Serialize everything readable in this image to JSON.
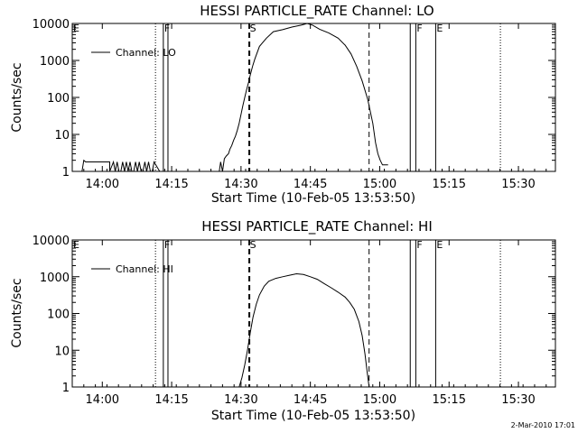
{
  "footer": {
    "timestamp": "2-Mar-2010 17:01"
  },
  "chart_data": [
    {
      "type": "line",
      "title": "HESSI PARTICLE_RATE Channel: LO",
      "xlabel": "Start Time (10-Feb-05 13:53:50)",
      "ylabel": "Counts/sec",
      "yscale": "log",
      "ylim": [
        1,
        10000
      ],
      "yticks": [
        {
          "value": 1,
          "label": "1"
        },
        {
          "value": 10,
          "label": "10"
        },
        {
          "value": 100,
          "label": "100"
        },
        {
          "value": 1000,
          "label": "1000"
        },
        {
          "value": 10000,
          "label": "10000"
        }
      ],
      "xlim_minutes_after_1400": [
        -6.5,
        37
      ],
      "xticks": [
        {
          "value": 0,
          "label": "14:00"
        },
        {
          "value": 15,
          "label": "14:15"
        },
        {
          "value": 30,
          "label": "14:30"
        },
        {
          "value": 45,
          "label": "14:45"
        },
        {
          "value": 60,
          "label": "15:00"
        },
        {
          "value": 75,
          "label": "15:15"
        },
        {
          "value": 90,
          "label": "15:30"
        }
      ],
      "legend": {
        "placement": "top-left",
        "entries": [
          "Channel: LO"
        ]
      },
      "markers": [
        {
          "label": "E",
          "x": -6.5,
          "style": "solid"
        },
        {
          "label": "",
          "x": 11.5,
          "style": "dotted"
        },
        {
          "label": "F",
          "x": 13.2,
          "style": "solid"
        },
        {
          "label": "",
          "x": 14.2,
          "style": "solid"
        },
        {
          "label": "S",
          "x": 31.7,
          "style": "dashed"
        },
        {
          "label": "",
          "x": 31.9,
          "style": "dashed"
        },
        {
          "label": "",
          "x": 57.7,
          "style": "dashed"
        },
        {
          "label": "",
          "x": 66.6,
          "style": "solid"
        },
        {
          "label": "F",
          "x": 67.8,
          "style": "solid"
        },
        {
          "label": "E",
          "x": 72.1,
          "style": "solid"
        },
        {
          "label": "",
          "x": 86.1,
          "style": "dotted"
        }
      ],
      "series": [
        {
          "x": [
            -6.5,
            -4.4,
            -4,
            -3.6,
            1.6,
            1.6,
            2.4,
            2.8,
            3.2,
            3.6,
            4,
            4.4,
            4.8,
            5.2,
            5.6,
            6,
            6.4,
            6.8,
            7.2,
            7.6,
            8,
            8.4,
            8.8,
            9.2,
            9.6,
            10,
            10.4,
            10.8,
            11.2,
            12.4,
            12.8,
            25.3,
            25.6,
            26,
            26.4,
            26.8,
            27.3,
            27.6,
            28,
            28.4,
            28.8,
            29.2,
            29.6,
            30,
            30.4,
            30.8,
            31.2,
            31.6,
            32,
            32.5,
            33,
            34,
            35.5,
            37,
            39,
            41,
            43,
            44.3,
            45.5,
            47,
            49,
            51,
            52.5,
            53.8,
            55,
            56.2,
            57.4,
            58.5,
            59.1,
            59.6,
            60.1,
            60.6,
            60.9,
            61.8
          ],
          "y": [
            1,
            1,
            2,
            1.8,
            1.8,
            1,
            1.8,
            1,
            1.8,
            1,
            1,
            1.8,
            1,
            1.8,
            1,
            1.8,
            1,
            1,
            1.8,
            1,
            1.8,
            1,
            1,
            1.8,
            1,
            1.8,
            1,
            1,
            1.8,
            1,
            1,
            1,
            1.8,
            1,
            2.2,
            2.6,
            3,
            4,
            5,
            7,
            9,
            13,
            20,
            35,
            60,
            100,
            160,
            250,
            400,
            700,
            1100,
            2400,
            4000,
            6000,
            6800,
            8000,
            9000,
            10000,
            9000,
            7000,
            5500,
            4000,
            2600,
            1500,
            700,
            280,
            90,
            20,
            6,
            3,
            2,
            1.5,
            1.5,
            1.5
          ]
        }
      ]
    },
    {
      "type": "line",
      "title": "HESSI PARTICLE_RATE Channel: HI",
      "xlabel": "Start Time (10-Feb-05 13:53:50)",
      "ylabel": "Counts/sec",
      "yscale": "log",
      "ylim": [
        1,
        10000
      ],
      "yticks": [
        {
          "value": 1,
          "label": "1"
        },
        {
          "value": 10,
          "label": "10"
        },
        {
          "value": 100,
          "label": "100"
        },
        {
          "value": 1000,
          "label": "1000"
        },
        {
          "value": 10000,
          "label": "10000"
        }
      ],
      "xlim_minutes_after_1400": [
        -6.5,
        37
      ],
      "xticks": [
        {
          "value": 0,
          "label": "14:00"
        },
        {
          "value": 15,
          "label": "14:15"
        },
        {
          "value": 30,
          "label": "14:30"
        },
        {
          "value": 45,
          "label": "14:45"
        },
        {
          "value": 60,
          "label": "15:00"
        },
        {
          "value": 75,
          "label": "15:15"
        },
        {
          "value": 90,
          "label": "15:30"
        }
      ],
      "legend": {
        "placement": "top-left",
        "entries": [
          "Channel: HI"
        ]
      },
      "markers": [
        {
          "label": "E",
          "x": -6.5,
          "style": "solid"
        },
        {
          "label": "",
          "x": 11.5,
          "style": "dotted"
        },
        {
          "label": "F",
          "x": 13.2,
          "style": "solid"
        },
        {
          "label": "",
          "x": 14.2,
          "style": "solid"
        },
        {
          "label": "S",
          "x": 31.7,
          "style": "dashed"
        },
        {
          "label": "",
          "x": 31.9,
          "style": "dashed"
        },
        {
          "label": "",
          "x": 57.7,
          "style": "dashed"
        },
        {
          "label": "",
          "x": 66.6,
          "style": "solid"
        },
        {
          "label": "F",
          "x": 67.8,
          "style": "solid"
        },
        {
          "label": "E",
          "x": 72.1,
          "style": "solid"
        },
        {
          "label": "",
          "x": 86.1,
          "style": "dotted"
        }
      ],
      "series": [
        {
          "x": [
            29.6,
            30.2,
            30.8,
            31.4,
            32,
            32.6,
            33.3,
            34,
            35,
            36,
            37.5,
            39,
            40.5,
            42,
            43.5,
            45,
            46.5,
            48,
            49.5,
            51,
            52.5,
            53.5,
            54.5,
            55.5,
            56.2,
            56.8,
            57.3,
            57.7
          ],
          "y": [
            1,
            1.8,
            4,
            10,
            30,
            80,
            180,
            320,
            550,
            750,
            900,
            1000,
            1100,
            1200,
            1150,
            1000,
            850,
            650,
            500,
            380,
            280,
            200,
            130,
            60,
            25,
            8,
            2.5,
            1
          ]
        }
      ]
    }
  ]
}
